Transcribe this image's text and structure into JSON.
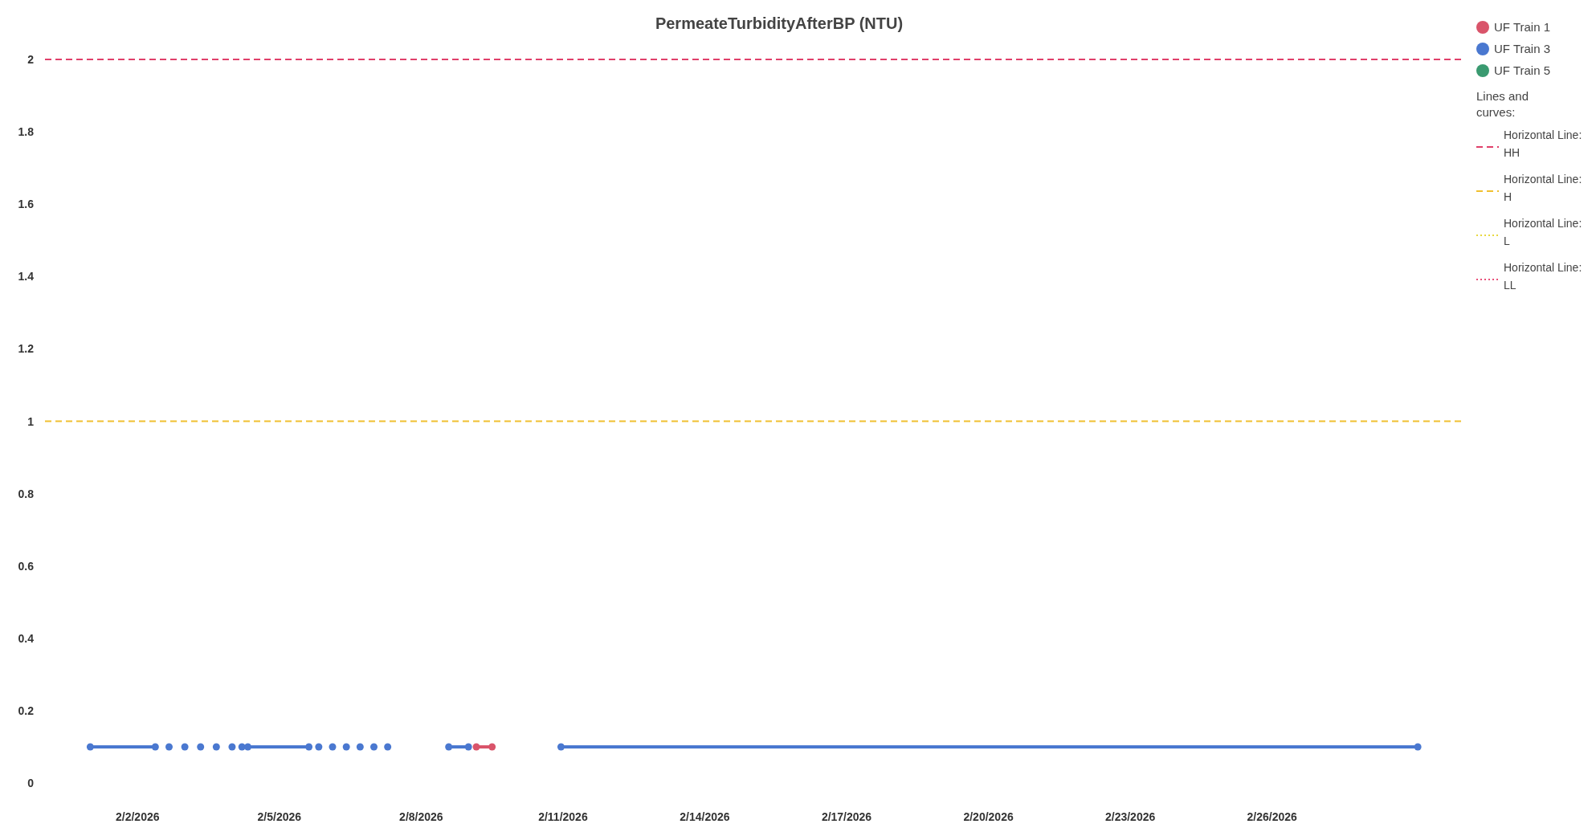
{
  "chart_data": {
    "type": "line",
    "title": "PermeateTurbidityAfterBP (NTU)",
    "xlim": [
      "2026-01-31T01:00",
      "2026-03-02T02:00"
    ],
    "xticks": [
      {
        "value": "2026-02-02",
        "label": "2/2/2026"
      },
      {
        "value": "2026-02-05",
        "label": "2/5/2026"
      },
      {
        "value": "2026-02-08",
        "label": "2/8/2026"
      },
      {
        "value": "2026-02-11",
        "label": "2/11/2026"
      },
      {
        "value": "2026-02-14",
        "label": "2/14/2026"
      },
      {
        "value": "2026-02-17",
        "label": "2/17/2026"
      },
      {
        "value": "2026-02-20",
        "label": "2/20/2026"
      },
      {
        "value": "2026-02-23",
        "label": "2/23/2026"
      },
      {
        "value": "2026-02-26",
        "label": "2/26/2026"
      }
    ],
    "ylim": [
      0,
      2
    ],
    "yticks": [
      0,
      0.2,
      0.4,
      0.6,
      0.8,
      1,
      1.2,
      1.4,
      1.6,
      1.8,
      2
    ],
    "marker": "circle",
    "legend": "top right",
    "series": [
      {
        "name": "UF Train 1",
        "color": "#d9546a",
        "x": [
          "2026-02-09T04:00",
          "2026-02-09T12:00"
        ],
        "values": [
          0.1,
          0.1
        ]
      },
      {
        "name": "UF Train 3",
        "color": "#4a78d0",
        "x": [
          "2026-02-01T00:00",
          "2026-02-02T09:00",
          "2026-02-02T12:00",
          "2026-02-02T16:00",
          "2026-02-02T20:00",
          "2026-02-03T00:00",
          "2026-02-03T04:00",
          "2026-02-03T08:00",
          "2026-02-03T12:00",
          "2026-02-03T16:00",
          "2026-02-03T20:00",
          "2026-02-04T00:00",
          "2026-02-04T03:00",
          "2026-02-04T05:00",
          "2026-02-04T06:00",
          "2026-02-04T08:00",
          "2026-02-05T15:00",
          "2026-02-05T17:00",
          "2026-02-05T20:00",
          "2026-02-06T00:00",
          "2026-02-06T03:00",
          "2026-02-06T06:00",
          "2026-02-06T10:00",
          "2026-02-06T14:00",
          "2026-02-06T17:00",
          "2026-02-06T20:00",
          "2026-02-07T00:00",
          "2026-02-07T04:00",
          "2026-02-07T07:00",
          "2026-02-08T00:00",
          "2026-02-08T14:00",
          "2026-02-09T00:00",
          "2026-02-10T00:00",
          "2026-02-10T23:00",
          "2026-03-01T02:00"
        ],
        "values": [
          0.1,
          0.1,
          null,
          0.1,
          null,
          0.1,
          null,
          0.1,
          null,
          0.1,
          null,
          0.1,
          null,
          0.1,
          null,
          0.1,
          0.1,
          null,
          0.1,
          null,
          0.1,
          null,
          0.1,
          null,
          0.1,
          null,
          0.1,
          null,
          0.1,
          null,
          0.1,
          0.1,
          null,
          0.1,
          0.1
        ]
      },
      {
        "name": "UF Train 5",
        "color": "#3a9a70"
      }
    ],
    "ref_lines": [
      {
        "axis": "y",
        "value": 2,
        "label": "Horizontal Line: HH",
        "color": "#e0406a",
        "line_style": "dashed"
      },
      {
        "axis": "y",
        "value": 1,
        "label": "Horizontal Line: H",
        "color": "#f0c030",
        "line_style": "dashed"
      },
      {
        "axis": "y",
        "value": null,
        "label": "Horizontal Line: L",
        "color": "#e8d840",
        "line_style": "dotted"
      },
      {
        "axis": "y",
        "value": null,
        "label": "Horizontal Line: LL",
        "color": "#e8507a",
        "line_style": "dotted"
      }
    ],
    "annotations": [
      "Lines and curves:"
    ]
  }
}
